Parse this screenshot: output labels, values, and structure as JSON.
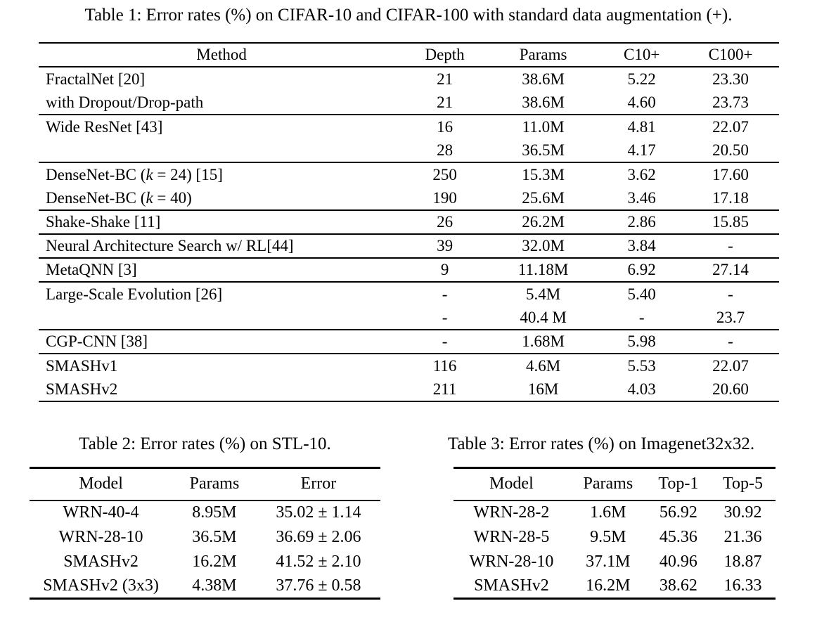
{
  "page": {
    "background": "#ffffff",
    "text_color": "#000000"
  },
  "table1": {
    "caption": "Table 1: Error rates (%) on CIFAR-10 and CIFAR-100 with standard data augmentation (+).",
    "columns": [
      "Method",
      "Depth",
      "Params",
      "C10+",
      "C100+"
    ],
    "groups": [
      {
        "rows": [
          {
            "cells": [
              "FractalNet [20]",
              "21",
              "38.6M",
              "5.22",
              "23.30"
            ],
            "bold": []
          },
          {
            "cells": [
              "with Dropout/Drop-path",
              "21",
              "38.6M",
              "4.60",
              "23.73"
            ],
            "bold": []
          }
        ]
      },
      {
        "rows": [
          {
            "cells": [
              "Wide ResNet [43]",
              "16",
              "11.0M",
              "4.81",
              "22.07"
            ],
            "bold": []
          },
          {
            "cells": [
              "",
              "28",
              "36.5M",
              "4.17",
              "20.50"
            ],
            "bold": []
          }
        ]
      },
      {
        "rows": [
          {
            "cells": [
              "DenseNet-BC (k = 24) [15]",
              "250",
              "15.3M",
              "3.62",
              "17.60"
            ],
            "bold": []
          },
          {
            "cells": [
              "DenseNet-BC (k = 40)",
              "190",
              "25.6M",
              "3.46",
              "17.18"
            ],
            "bold": []
          }
        ]
      },
      {
        "rows": [
          {
            "cells": [
              "Shake-Shake [11]",
              "26",
              "26.2M",
              "2.86",
              "15.85"
            ],
            "bold": [
              3,
              4
            ]
          }
        ]
      },
      {
        "rows": [
          {
            "cells": [
              "Neural Architecture Search w/ RL[44]",
              "39",
              "32.0M",
              "3.84",
              "-"
            ],
            "bold": []
          }
        ]
      },
      {
        "rows": [
          {
            "cells": [
              "MetaQNN [3]",
              "9",
              "11.18M",
              "6.92",
              "27.14"
            ],
            "bold": []
          }
        ]
      },
      {
        "rows": [
          {
            "cells": [
              "Large-Scale Evolution [26]",
              "-",
              "5.4M",
              "5.40",
              "-"
            ],
            "bold": []
          },
          {
            "cells": [
              "",
              "-",
              "40.4 M",
              "-",
              "23.7"
            ],
            "bold": []
          }
        ]
      },
      {
        "rows": [
          {
            "cells": [
              "CGP-CNN [38]",
              "-",
              "1.68M",
              "5.98",
              "-"
            ],
            "bold": []
          }
        ]
      },
      {
        "rows": [
          {
            "cells": [
              "SMASHv1",
              "116",
              "4.6M",
              "5.53",
              "22.07"
            ],
            "bold": []
          },
          {
            "cells": [
              "SMASHv2",
              "211",
              "16M",
              "4.03",
              "20.60"
            ],
            "bold": []
          }
        ]
      }
    ]
  },
  "table2": {
    "caption": "Table 2: Error rates (%) on STL-10.",
    "columns": [
      "Model",
      "Params",
      "Error"
    ],
    "rows": [
      {
        "cells": [
          "WRN-40-4",
          "8.95M",
          "35.02 ± 1.14"
        ],
        "bold": [
          2
        ]
      },
      {
        "cells": [
          "WRN-28-10",
          "36.5M",
          "36.69 ± 2.06"
        ],
        "bold": []
      },
      {
        "cells": [
          "SMASHv2",
          "16.2M",
          "41.52 ± 2.10"
        ],
        "bold": []
      },
      {
        "cells": [
          "SMASHv2 (3x3)",
          "4.38M",
          "37.76 ± 0.58"
        ],
        "bold": []
      }
    ]
  },
  "table3": {
    "caption": "Table 3: Error rates (%) on Imagenet32x32.",
    "columns": [
      "Model",
      "Params",
      "Top-1",
      "Top-5"
    ],
    "rows": [
      {
        "cells": [
          "WRN-28-2",
          "1.6M",
          "56.92",
          "30.92"
        ],
        "bold": []
      },
      {
        "cells": [
          "WRN-28-5",
          "9.5M",
          "45.36",
          "21.36"
        ],
        "bold": []
      },
      {
        "cells": [
          "WRN-28-10",
          "37.1M",
          "40.96",
          "18.87"
        ],
        "bold": []
      },
      {
        "cells": [
          "SMASHv2",
          "16.2M",
          "38.62",
          "16.33"
        ],
        "bold": [
          2,
          3
        ]
      }
    ]
  }
}
